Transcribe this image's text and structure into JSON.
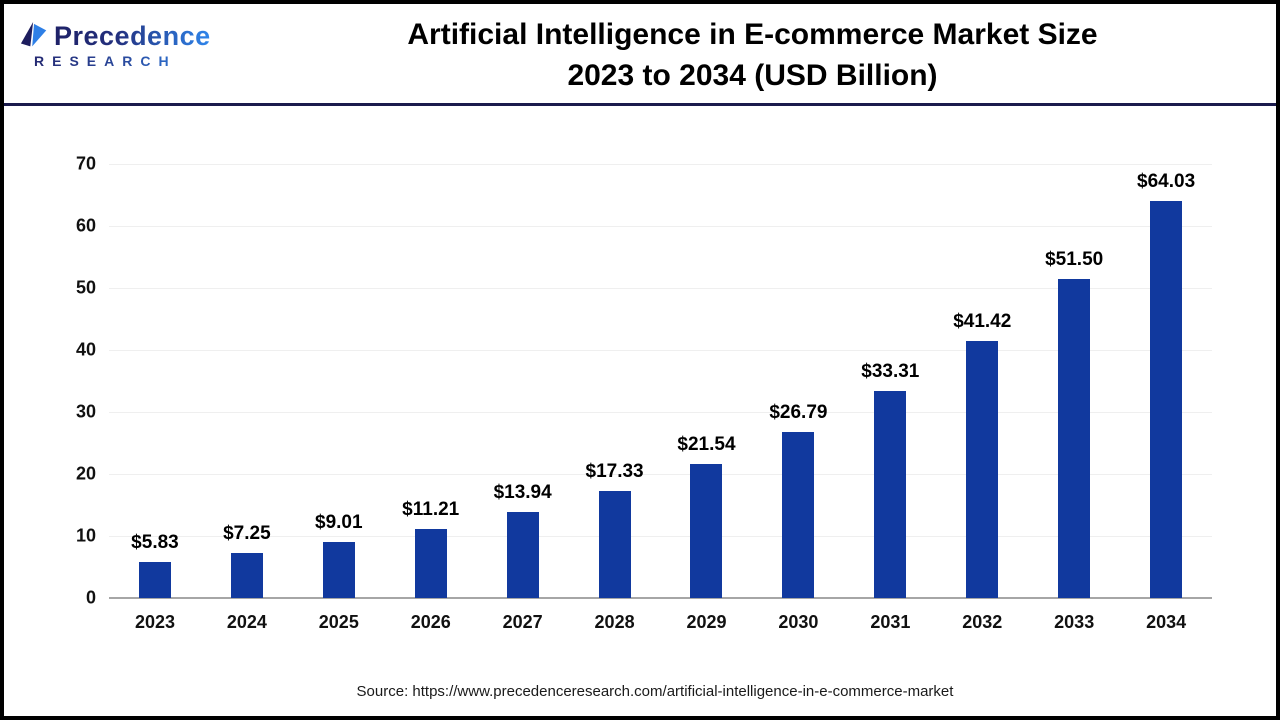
{
  "brand": {
    "name": "Precedence",
    "subname": "RESEARCH"
  },
  "title": {
    "line1": "Artificial Intelligence in E-commerce Market Size",
    "line2": "2023 to 2034 (USD Billion)"
  },
  "source_text": "Source: https://www.precedenceresearch.com/artificial-intelligence-in-e-commerce-market",
  "colors": {
    "bar": "#11399E",
    "divider": "#1B1B4D",
    "gridline": "#EFEFEF",
    "baseline": "#A6A6A6",
    "logo_navy": "#1E2167",
    "logo_blue": "#2F86EC"
  },
  "chart_data": {
    "type": "bar",
    "title": "Artificial Intelligence in E-commerce Market Size 2023 to 2034 (USD Billion)",
    "categories": [
      "2023",
      "2024",
      "2025",
      "2026",
      "2027",
      "2028",
      "2029",
      "2030",
      "2031",
      "2032",
      "2033",
      "2034"
    ],
    "values": [
      5.83,
      7.25,
      9.01,
      11.21,
      13.94,
      17.33,
      21.54,
      26.79,
      33.31,
      41.42,
      51.5,
      64.03
    ],
    "value_labels": [
      "$5.83",
      "$7.25",
      "$9.01",
      "$11.21",
      "$13.94",
      "$17.33",
      "$21.54",
      "$26.79",
      "$33.31",
      "$41.42",
      "$51.50",
      "$64.03"
    ],
    "xlabel": "",
    "ylabel": "",
    "ylim": [
      0,
      70
    ],
    "yticks": [
      0,
      10,
      20,
      30,
      40,
      50,
      60,
      70
    ],
    "grid": true,
    "legend": false,
    "bar_color": "#11399E"
  }
}
